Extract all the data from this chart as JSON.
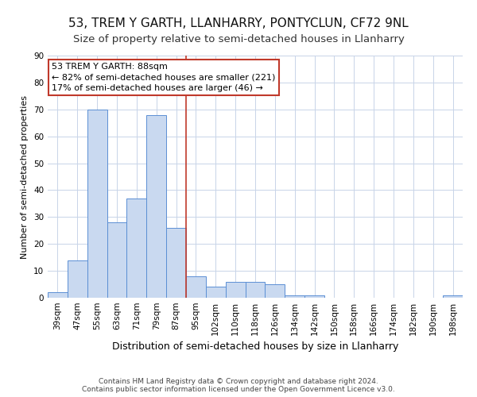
{
  "title": "53, TREM Y GARTH, LLANHARRY, PONTYCLUN, CF72 9NL",
  "subtitle": "Size of property relative to semi-detached houses in Llanharry",
  "xlabel": "Distribution of semi-detached houses by size in Llanharry",
  "ylabel": "Number of semi-detached properties",
  "categories": [
    "39sqm",
    "47sqm",
    "55sqm",
    "63sqm",
    "71sqm",
    "79sqm",
    "87sqm",
    "95sqm",
    "102sqm",
    "110sqm",
    "118sqm",
    "126sqm",
    "134sqm",
    "142sqm",
    "150sqm",
    "158sqm",
    "166sqm",
    "174sqm",
    "182sqm",
    "190sqm",
    "198sqm"
  ],
  "values": [
    2,
    14,
    70,
    28,
    37,
    68,
    26,
    8,
    4,
    6,
    6,
    5,
    1,
    1,
    0,
    0,
    0,
    0,
    0,
    0,
    1
  ],
  "bar_color": "#c9d9f0",
  "bar_edge_color": "#5b8fd4",
  "highlight_index": 6,
  "highlight_line_color": "#c0392b",
  "annotation_line1": "53 TREM Y GARTH: 88sqm",
  "annotation_line2": "← 82% of semi-detached houses are smaller (221)",
  "annotation_line3": "17% of semi-detached houses are larger (46) →",
  "annotation_box_color": "#ffffff",
  "annotation_box_edge_color": "#c0392b",
  "ylim": [
    0,
    90
  ],
  "yticks": [
    0,
    10,
    20,
    30,
    40,
    50,
    60,
    70,
    80,
    90
  ],
  "title_fontsize": 11,
  "subtitle_fontsize": 9.5,
  "xlabel_fontsize": 9,
  "ylabel_fontsize": 8,
  "tick_fontsize": 7.5,
  "annotation_fontsize": 8,
  "footer_text": "Contains HM Land Registry data © Crown copyright and database right 2024.\nContains public sector information licensed under the Open Government Licence v3.0.",
  "background_color": "#ffffff",
  "grid_color": "#c8d4e8"
}
